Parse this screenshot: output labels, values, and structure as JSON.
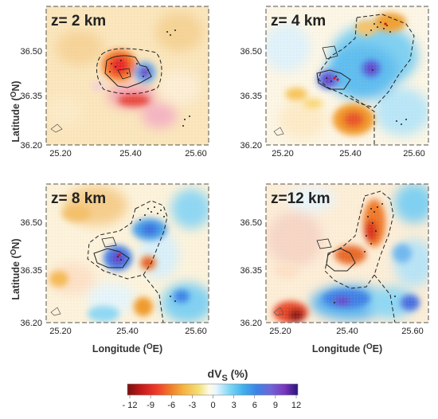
{
  "panels": [
    {
      "label": "z= 2 km"
    },
    {
      "label": "z= 4 km"
    },
    {
      "label": "z= 8 km"
    },
    {
      "label": "z=12 km"
    }
  ],
  "axes": {
    "x_ticks": [
      "25.20",
      "25.40",
      "25.60"
    ],
    "y_ticks": [
      "36.50",
      "36.35",
      "36.20"
    ],
    "xlabel_main": "Longitude (",
    "xlabel_sup": "O",
    "xlabel_end": "E)",
    "ylabel_main": "Latitude (",
    "ylabel_sup": "O",
    "ylabel_end": "N)"
  },
  "colorbar": {
    "title_main": "dV",
    "title_sub": "S",
    "title_end": " (%)",
    "tick_labels": [
      "- 12",
      "-9",
      "-6",
      "-3",
      "0",
      "3",
      "6",
      "9",
      "12"
    ],
    "colors": [
      "#7a0f0f",
      "#c41a1a",
      "#ef3a2a",
      "#f07a2a",
      "#f5b440",
      "#f4e07a",
      "#fffbe8",
      "#e8f6fd",
      "#7fd6f5",
      "#42b0ec",
      "#3d82e6",
      "#6f66d6",
      "#7a38bf",
      "#28147a"
    ]
  }
}
